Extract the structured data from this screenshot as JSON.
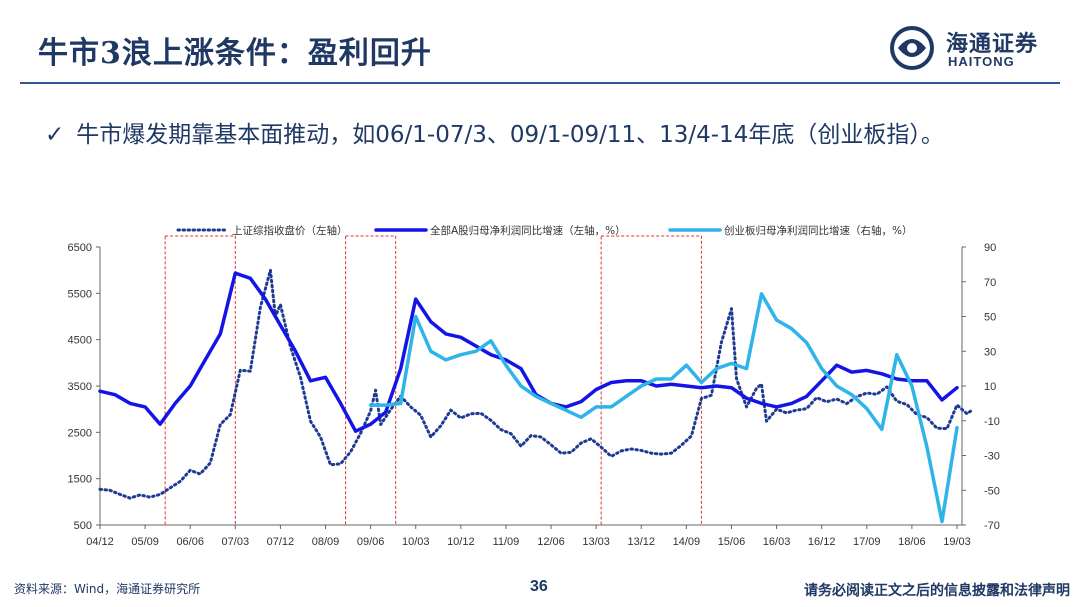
{
  "slide": {
    "title": "牛市3浪上涨条件：盈利回升",
    "bullet_mark": "✓",
    "bullet": "牛市爆发期靠基本面推动，如06/1-07/3、09/1-09/11、13/4-14年底（创业板指）。",
    "logo_cn": "海通证券",
    "logo_en": "HAITONG",
    "source": "资料来源：Wind，海通证券研究所",
    "page_number": "36",
    "disclaimer": "请务必阅读正文之后的信息披露和法律声明"
  },
  "colors": {
    "brand": "#1f3864",
    "index_series": "#1f3a93",
    "a_share_series": "#1414e6",
    "chinext_series": "#2fb4e9",
    "highlight_box": "#e03030"
  },
  "chart_data": {
    "type": "line",
    "x_ticks": [
      "04/12",
      "05/09",
      "06/06",
      "07/03",
      "07/12",
      "08/09",
      "09/06",
      "10/03",
      "10/12",
      "11/09",
      "12/06",
      "13/03",
      "13/12",
      "14/09",
      "15/06",
      "16/03",
      "16/12",
      "17/09",
      "18/06",
      "19/03"
    ],
    "y_left": {
      "ticks": [
        500,
        1500,
        2500,
        3500,
        4500,
        5500,
        6500
      ],
      "range": [
        500,
        6500
      ]
    },
    "y_right": {
      "ticks": [
        -70,
        -50,
        -30,
        -10,
        10,
        30,
        50,
        70,
        90
      ],
      "range": [
        -70,
        90
      ]
    },
    "highlight_ranges": [
      [
        "2006-01",
        "2007-03"
      ],
      [
        "2009-01",
        "2009-11"
      ],
      [
        "2013-04",
        "2014-12"
      ]
    ],
    "series": [
      {
        "name": "上证综指收盘价（左轴）",
        "axis": "left",
        "style": "dotted",
        "points": [
          [
            "2004-12",
            1270
          ],
          [
            "2005-02",
            1250
          ],
          [
            "2005-04",
            1160
          ],
          [
            "2005-06",
            1080
          ],
          [
            "2005-08",
            1150
          ],
          [
            "2005-10",
            1100
          ],
          [
            "2005-12",
            1160
          ],
          [
            "2006-02",
            1300
          ],
          [
            "2006-04",
            1440
          ],
          [
            "2006-06",
            1680
          ],
          [
            "2006-08",
            1600
          ],
          [
            "2006-10",
            1840
          ],
          [
            "2006-12",
            2670
          ],
          [
            "2007-02",
            2880
          ],
          [
            "2007-04",
            3840
          ],
          [
            "2007-06",
            3820
          ],
          [
            "2007-08",
            5200
          ],
          [
            "2007-10",
            6000
          ],
          [
            "2007-11",
            5000
          ],
          [
            "2007-12",
            5260
          ],
          [
            "2008-02",
            4350
          ],
          [
            "2008-04",
            3690
          ],
          [
            "2008-06",
            2740
          ],
          [
            "2008-08",
            2400
          ],
          [
            "2008-10",
            1800
          ],
          [
            "2008-12",
            1820
          ],
          [
            "2009-02",
            2080
          ],
          [
            "2009-04",
            2480
          ],
          [
            "2009-06",
            2960
          ],
          [
            "2009-07",
            3410
          ],
          [
            "2009-08",
            2670
          ],
          [
            "2009-10",
            2990
          ],
          [
            "2009-12",
            3280
          ],
          [
            "2010-02",
            3050
          ],
          [
            "2010-04",
            2870
          ],
          [
            "2010-06",
            2400
          ],
          [
            "2010-08",
            2640
          ],
          [
            "2010-10",
            2980
          ],
          [
            "2010-12",
            2810
          ],
          [
            "2011-02",
            2900
          ],
          [
            "2011-04",
            2910
          ],
          [
            "2011-06",
            2760
          ],
          [
            "2011-08",
            2560
          ],
          [
            "2011-10",
            2470
          ],
          [
            "2011-12",
            2200
          ],
          [
            "2012-02",
            2430
          ],
          [
            "2012-04",
            2400
          ],
          [
            "2012-06",
            2230
          ],
          [
            "2012-08",
            2050
          ],
          [
            "2012-10",
            2070
          ],
          [
            "2012-12",
            2270
          ],
          [
            "2013-02",
            2360
          ],
          [
            "2013-04",
            2180
          ],
          [
            "2013-06",
            1980
          ],
          [
            "2013-08",
            2100
          ],
          [
            "2013-10",
            2140
          ],
          [
            "2013-12",
            2110
          ],
          [
            "2014-02",
            2050
          ],
          [
            "2014-04",
            2030
          ],
          [
            "2014-06",
            2050
          ],
          [
            "2014-08",
            2220
          ],
          [
            "2014-10",
            2420
          ],
          [
            "2014-12",
            3230
          ],
          [
            "2015-02",
            3300
          ],
          [
            "2015-04",
            4440
          ],
          [
            "2015-06",
            5170
          ],
          [
            "2015-07",
            3660
          ],
          [
            "2015-09",
            3050
          ],
          [
            "2015-11",
            3450
          ],
          [
            "2015-12",
            3540
          ],
          [
            "2016-01",
            2740
          ],
          [
            "2016-03",
            3000
          ],
          [
            "2016-05",
            2920
          ],
          [
            "2016-07",
            2980
          ],
          [
            "2016-09",
            3010
          ],
          [
            "2016-11",
            3250
          ],
          [
            "2017-01",
            3160
          ],
          [
            "2017-03",
            3220
          ],
          [
            "2017-05",
            3120
          ],
          [
            "2017-07",
            3270
          ],
          [
            "2017-09",
            3350
          ],
          [
            "2017-11",
            3320
          ],
          [
            "2018-01",
            3480
          ],
          [
            "2018-03",
            3170
          ],
          [
            "2018-05",
            3100
          ],
          [
            "2018-07",
            2880
          ],
          [
            "2018-09",
            2820
          ],
          [
            "2018-11",
            2590
          ],
          [
            "2019-01",
            2580
          ],
          [
            "2019-03",
            3090
          ],
          [
            "2019-05",
            2900
          ],
          [
            "2019-06",
            2980
          ]
        ]
      },
      {
        "name": "全部A股归母净利润同比增速（左轴，%）",
        "axis": "right",
        "style": "solid",
        "points": [
          [
            "2004-12",
            7
          ],
          [
            "2005-03",
            5
          ],
          [
            "2005-06",
            0
          ],
          [
            "2005-09",
            -2
          ],
          [
            "2005-12",
            -12
          ],
          [
            "2006-03",
            0
          ],
          [
            "2006-06",
            10
          ],
          [
            "2006-09",
            25
          ],
          [
            "2006-12",
            40
          ],
          [
            "2007-03",
            75
          ],
          [
            "2007-06",
            72
          ],
          [
            "2007-09",
            60
          ],
          [
            "2007-12",
            45
          ],
          [
            "2008-03",
            30
          ],
          [
            "2008-06",
            13
          ],
          [
            "2008-09",
            15
          ],
          [
            "2008-12",
            0
          ],
          [
            "2009-03",
            -16
          ],
          [
            "2009-06",
            -12
          ],
          [
            "2009-09",
            -5
          ],
          [
            "2009-12",
            20
          ],
          [
            "2010-03",
            60
          ],
          [
            "2010-06",
            47
          ],
          [
            "2010-09",
            40
          ],
          [
            "2010-12",
            38
          ],
          [
            "2011-03",
            33
          ],
          [
            "2011-06",
            28
          ],
          [
            "2011-09",
            25
          ],
          [
            "2011-12",
            20
          ],
          [
            "2012-03",
            5
          ],
          [
            "2012-06",
            0
          ],
          [
            "2012-09",
            -2
          ],
          [
            "2012-12",
            1
          ],
          [
            "2013-03",
            8
          ],
          [
            "2013-06",
            12
          ],
          [
            "2013-09",
            13
          ],
          [
            "2013-12",
            13
          ],
          [
            "2014-03",
            10
          ],
          [
            "2014-06",
            11
          ],
          [
            "2014-09",
            10
          ],
          [
            "2014-12",
            9
          ],
          [
            "2015-03",
            10
          ],
          [
            "2015-06",
            9
          ],
          [
            "2015-09",
            3
          ],
          [
            "2015-12",
            0
          ],
          [
            "2016-03",
            -2
          ],
          [
            "2016-06",
            0
          ],
          [
            "2016-09",
            4
          ],
          [
            "2016-12",
            13
          ],
          [
            "2017-03",
            22
          ],
          [
            "2017-06",
            18
          ],
          [
            "2017-09",
            19
          ],
          [
            "2017-12",
            17
          ],
          [
            "2018-03",
            14
          ],
          [
            "2018-06",
            13
          ],
          [
            "2018-09",
            13
          ],
          [
            "2018-12",
            2
          ],
          [
            "2019-03",
            9
          ]
        ]
      },
      {
        "name": "创业板归母净利润同比增速（右轴，%）",
        "axis": "right",
        "style": "solid",
        "points": [
          [
            "2009-06",
            -1
          ],
          [
            "2009-09",
            -1
          ],
          [
            "2009-12",
            0
          ],
          [
            "2010-03",
            50
          ],
          [
            "2010-06",
            30
          ],
          [
            "2010-09",
            25
          ],
          [
            "2010-12",
            28
          ],
          [
            "2011-03",
            30
          ],
          [
            "2011-06",
            36
          ],
          [
            "2011-09",
            22
          ],
          [
            "2011-12",
            10
          ],
          [
            "2012-03",
            4
          ],
          [
            "2012-06",
            0
          ],
          [
            "2012-09",
            -4
          ],
          [
            "2012-12",
            -8
          ],
          [
            "2013-03",
            -2
          ],
          [
            "2013-06",
            -2
          ],
          [
            "2013-09",
            4
          ],
          [
            "2013-12",
            10
          ],
          [
            "2014-03",
            14
          ],
          [
            "2014-06",
            14
          ],
          [
            "2014-09",
            22
          ],
          [
            "2014-12",
            12
          ],
          [
            "2015-03",
            20
          ],
          [
            "2015-06",
            23
          ],
          [
            "2015-09",
            20
          ],
          [
            "2015-12",
            63
          ],
          [
            "2016-03",
            48
          ],
          [
            "2016-06",
            43
          ],
          [
            "2016-09",
            35
          ],
          [
            "2016-12",
            20
          ],
          [
            "2017-03",
            10
          ],
          [
            "2017-06",
            5
          ],
          [
            "2017-09",
            -3
          ],
          [
            "2017-12",
            -15
          ],
          [
            "2018-03",
            28
          ],
          [
            "2018-06",
            10
          ],
          [
            "2018-09",
            -25
          ],
          [
            "2018-12",
            -68
          ],
          [
            "2019-03",
            -14
          ]
        ]
      }
    ]
  }
}
